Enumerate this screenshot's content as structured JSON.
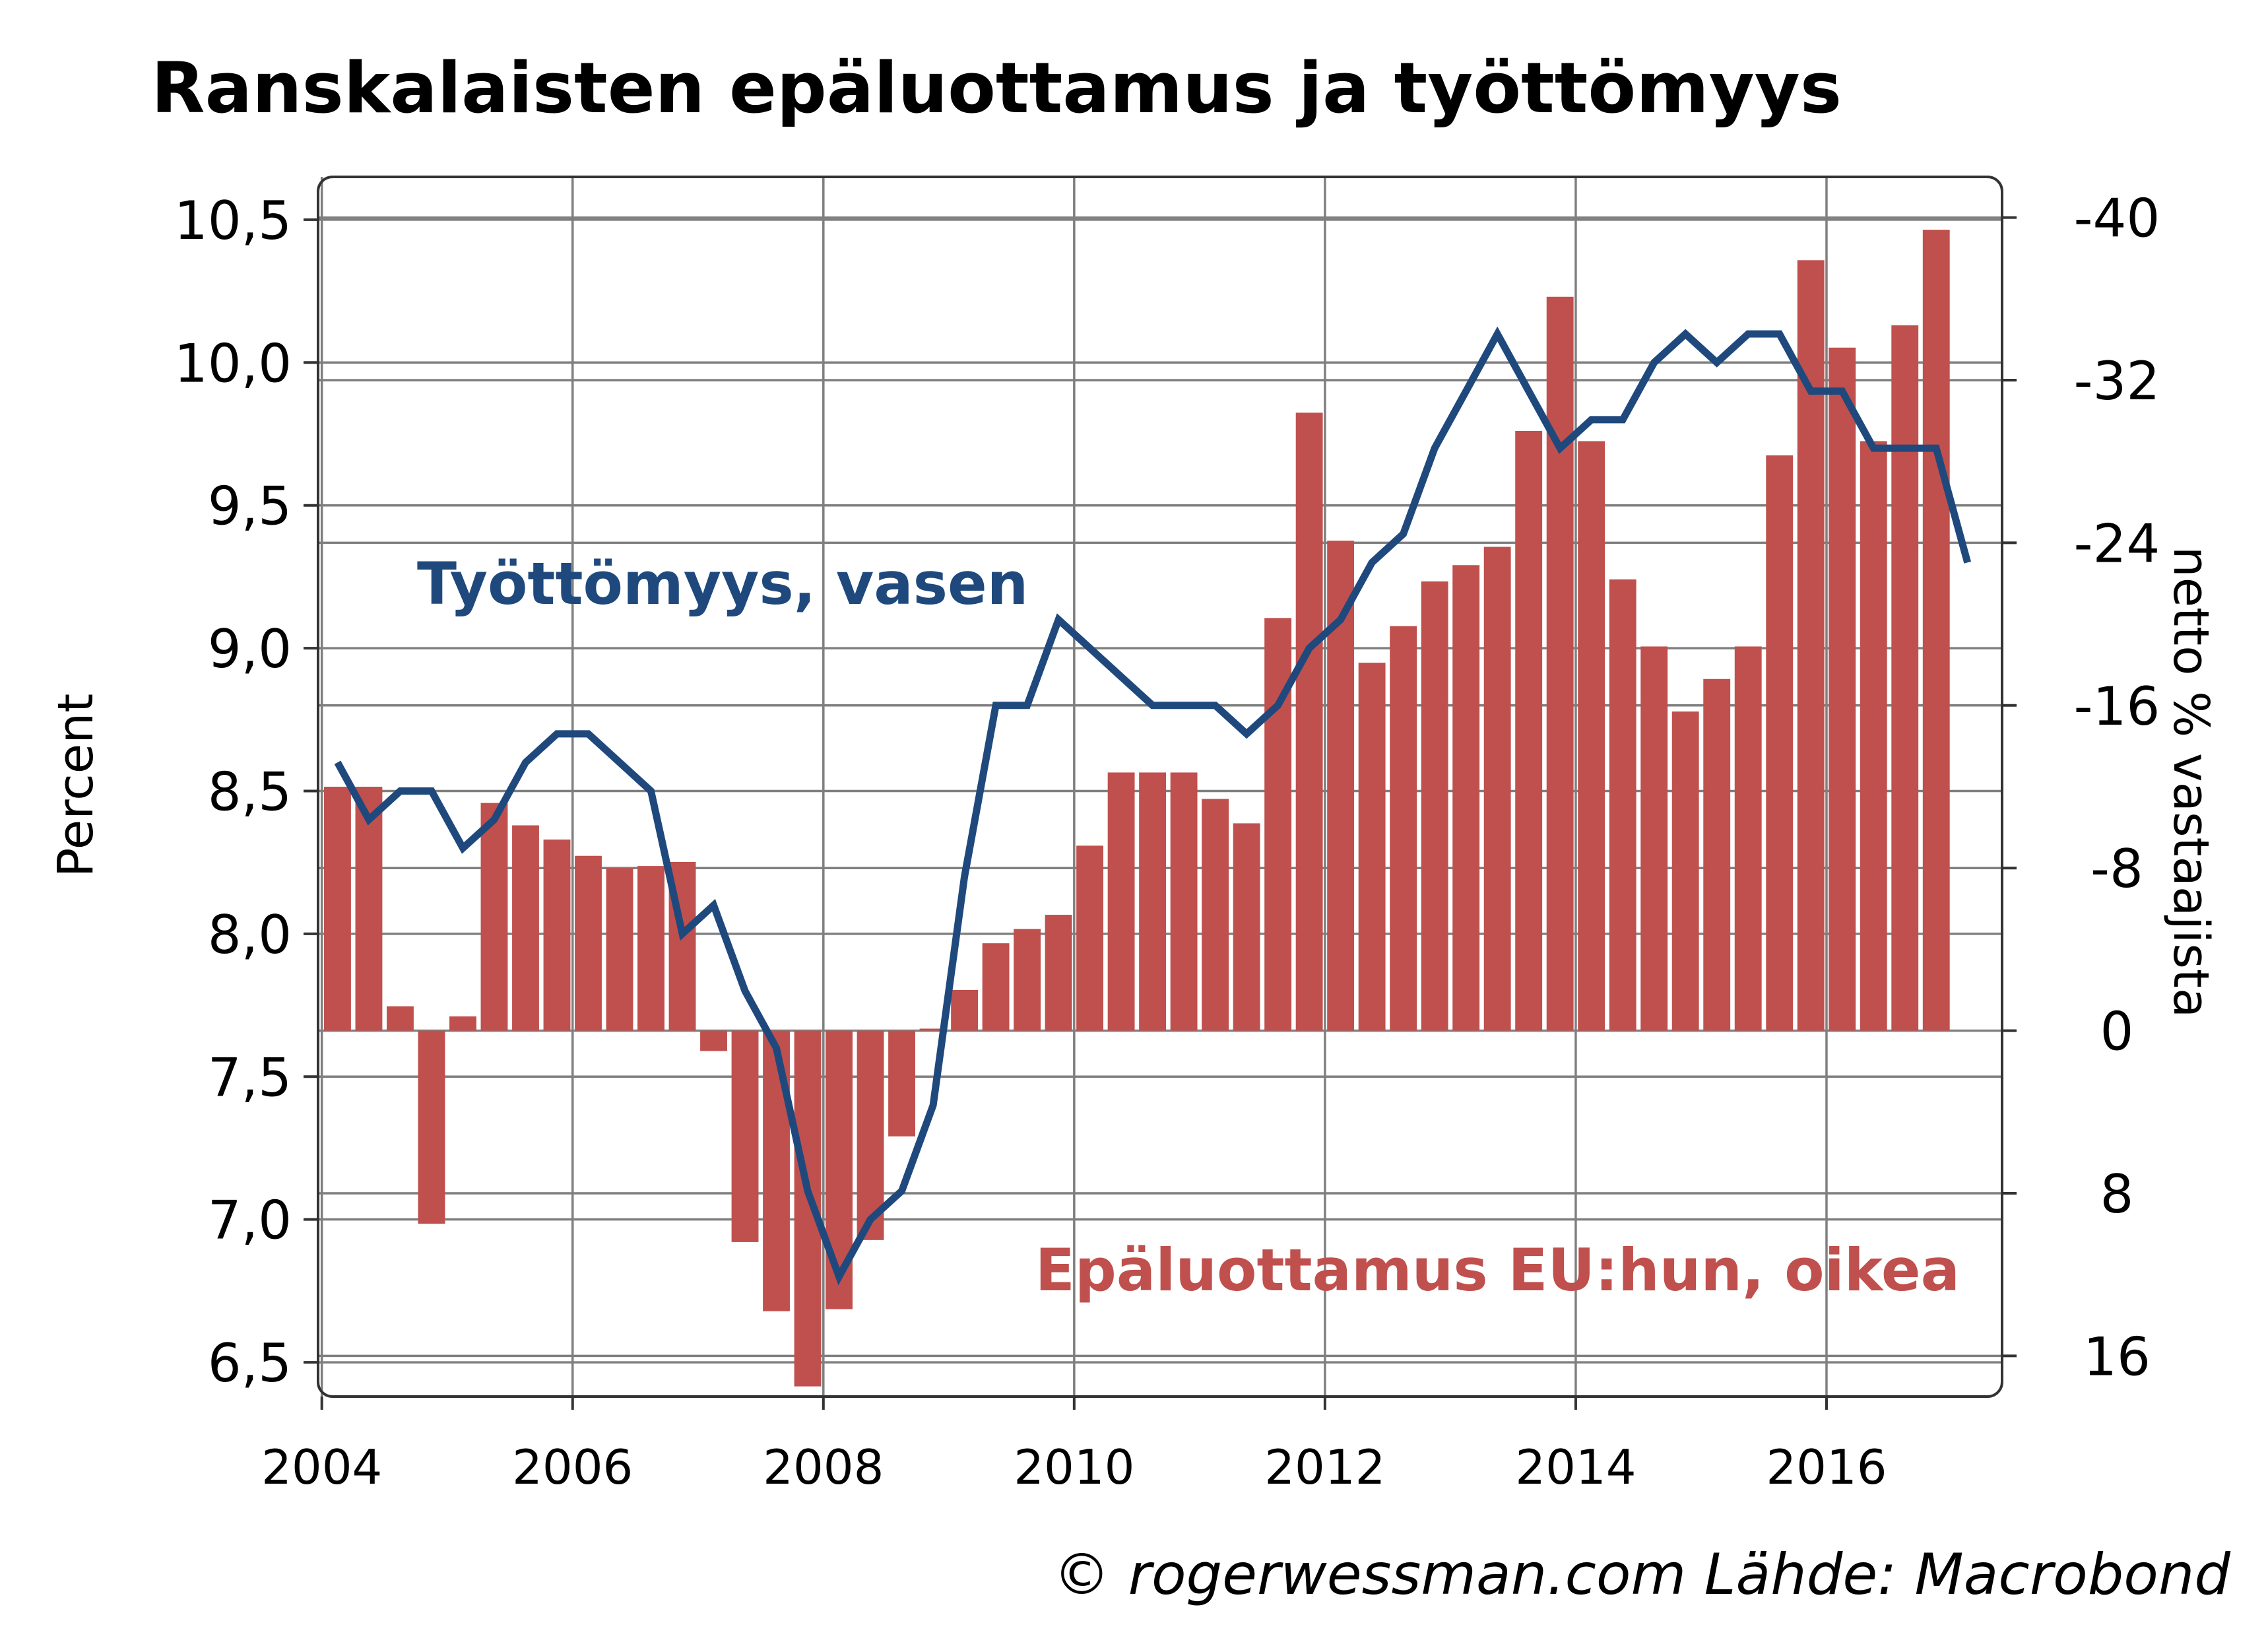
{
  "chart_data": {
    "type": "bar+line",
    "title": "Ranskalaisten epäluottamus ja työttömyys",
    "ylabel_left": "Percent",
    "ylabel_right": "netto % vastaajista",
    "credit": "© rogerwessman.com Lähde: Macrobond",
    "grid": true,
    "xlim": [
      2003.97,
      2017.4
    ],
    "x_ticks": [
      2004,
      2006,
      2008,
      2010,
      2012,
      2014,
      2016
    ],
    "x_tick_labels": [
      "2004",
      "2006",
      "2008",
      "2010",
      "2012",
      "2014",
      "2016"
    ],
    "left_axis": {
      "ylim": [
        6.38,
        10.65
      ],
      "ticks": [
        6.5,
        7.0,
        7.5,
        8.0,
        8.5,
        9.0,
        9.5,
        10.0,
        10.5
      ],
      "tick_labels": [
        "6,5",
        "7,0",
        "7,5",
        "8,0",
        "8,5",
        "9,0",
        "9,5",
        "10,0",
        "10,5"
      ]
    },
    "right_axis": {
      "inverted": true,
      "ylim": [
        18,
        -42
      ],
      "ticks": [
        16,
        8,
        0,
        -8,
        -16,
        -24,
        -32,
        -40
      ],
      "tick_labels": [
        "16",
        "8",
        "0",
        "-8",
        "-16",
        "-24",
        "-32",
        "-40"
      ]
    },
    "series": [
      {
        "name": "Epäluottamus EU:hun, oikea",
        "kind": "bar",
        "axis": "right",
        "color": "#c0504d",
        "x": [
          2004.125,
          2004.375,
          2004.625,
          2004.875,
          2005.125,
          2005.375,
          2005.625,
          2005.875,
          2006.125,
          2006.375,
          2006.625,
          2006.875,
          2007.125,
          2007.375,
          2007.625,
          2007.875,
          2008.125,
          2008.375,
          2008.625,
          2008.875,
          2009.125,
          2009.375,
          2009.625,
          2009.875,
          2010.125,
          2010.375,
          2010.625,
          2010.875,
          2011.125,
          2011.375,
          2011.625,
          2011.875,
          2012.125,
          2012.375,
          2012.625,
          2012.875,
          2013.125,
          2013.375,
          2013.625,
          2013.875,
          2014.125,
          2014.375,
          2014.625,
          2014.875,
          2015.125,
          2015.375,
          2015.625,
          2015.875,
          2016.125,
          2016.375,
          2016.625,
          2016.875
        ],
        "values": [
          -12,
          -12,
          -1.2,
          9.5,
          -0.7,
          -11.2,
          -10.1,
          -9.4,
          -8.6,
          -8.0,
          -8.1,
          -8.3,
          1.0,
          10.4,
          13.8,
          17.5,
          13.7,
          10.3,
          5.2,
          -0.1,
          -2.0,
          -4.3,
          -5.0,
          -5.7,
          -9.1,
          -12.7,
          -12.7,
          -12.7,
          -11.4,
          -10.2,
          -20.3,
          -30.4,
          -24.1,
          -18.1,
          -19.9,
          -22.1,
          -22.9,
          -23.8,
          -29.5,
          -36.1,
          -29.0,
          -22.2,
          -18.9,
          -15.7,
          -17.3,
          -18.9,
          -28.3,
          -37.9,
          -33.6,
          -29.0,
          -34.7,
          -39.4
        ]
      },
      {
        "name": "Työttömyys, vasen",
        "kind": "line",
        "axis": "left",
        "color": "#1f497d",
        "x": [
          2004.125,
          2004.375,
          2004.625,
          2004.875,
          2005.125,
          2005.375,
          2005.625,
          2005.875,
          2006.125,
          2006.375,
          2006.625,
          2006.875,
          2007.125,
          2007.375,
          2007.625,
          2007.875,
          2008.125,
          2008.375,
          2008.625,
          2008.875,
          2009.125,
          2009.375,
          2009.625,
          2009.875,
          2010.125,
          2010.375,
          2010.625,
          2010.875,
          2011.125,
          2011.375,
          2011.625,
          2011.875,
          2012.125,
          2012.375,
          2012.625,
          2012.875,
          2013.125,
          2013.375,
          2013.625,
          2013.875,
          2014.125,
          2014.375,
          2014.625,
          2014.875,
          2015.125,
          2015.375,
          2015.625,
          2015.875,
          2016.125,
          2016.375,
          2016.625,
          2016.875,
          2017.125
        ],
        "values": [
          8.6,
          8.4,
          8.5,
          8.5,
          8.3,
          8.4,
          8.6,
          8.7,
          8.7,
          8.6,
          8.5,
          8.0,
          8.1,
          7.8,
          7.6,
          7.1,
          6.8,
          7.0,
          7.1,
          7.4,
          8.2,
          8.8,
          8.8,
          9.1,
          9.0,
          8.9,
          8.8,
          8.8,
          8.8,
          8.7,
          8.8,
          9.0,
          9.1,
          9.3,
          9.4,
          9.7,
          9.9,
          10.1,
          9.9,
          9.7,
          9.8,
          9.8,
          10.0,
          10.1,
          10.0,
          10.1,
          10.1,
          9.9,
          9.9,
          9.7,
          9.7,
          9.7,
          9.3
        ]
      }
    ]
  }
}
